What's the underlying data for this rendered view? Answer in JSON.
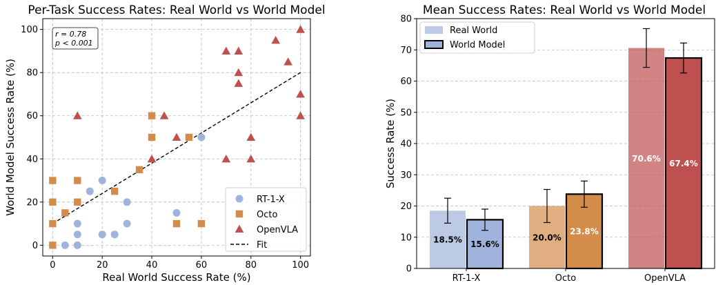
{
  "chart_data": [
    {
      "type": "scatter",
      "title": "Per-Task Success Rates: Real World vs World Model",
      "xlabel": "Real World Success Rate (%)",
      "ylabel": "World Model Success Rate (%)",
      "xlim": [
        -4,
        104
      ],
      "ylim": [
        -5,
        105
      ],
      "xticks": [
        0,
        20,
        40,
        60,
        80,
        100
      ],
      "yticks": [
        0,
        20,
        40,
        60,
        80,
        100
      ],
      "grid": true,
      "legend_position": "bottom-right",
      "stats_lines": [
        "r = 0.78",
        "p < 0.001"
      ],
      "series": [
        {
          "name": "RT-1-X",
          "marker": "circle",
          "color": "#9fb3dc",
          "points": [
            [
              5,
              0
            ],
            [
              10,
              0
            ],
            [
              10,
              5
            ],
            [
              10,
              10
            ],
            [
              15,
              25
            ],
            [
              20,
              30
            ],
            [
              20,
              5
            ],
            [
              25,
              5
            ],
            [
              30,
              20
            ],
            [
              30,
              10
            ],
            [
              50,
              15
            ],
            [
              60,
              50
            ]
          ]
        },
        {
          "name": "Octo",
          "marker": "square",
          "color": "#d38c4a",
          "points": [
            [
              0,
              30
            ],
            [
              0,
              20
            ],
            [
              0,
              10
            ],
            [
              0,
              0
            ],
            [
              5,
              15
            ],
            [
              10,
              30
            ],
            [
              10,
              20
            ],
            [
              25,
              25
            ],
            [
              35,
              35
            ],
            [
              40,
              60
            ],
            [
              40,
              50
            ],
            [
              50,
              10
            ],
            [
              55,
              50
            ],
            [
              60,
              10
            ]
          ]
        },
        {
          "name": "OpenVLA",
          "marker": "triangle",
          "color": "#bf5050",
          "points": [
            [
              10,
              60
            ],
            [
              40,
              40
            ],
            [
              45,
              60
            ],
            [
              50,
              50
            ],
            [
              70,
              90
            ],
            [
              70,
              40
            ],
            [
              75,
              90
            ],
            [
              75,
              80
            ],
            [
              75,
              75
            ],
            [
              80,
              50
            ],
            [
              80,
              40
            ],
            [
              90,
              95
            ],
            [
              95,
              85
            ],
            [
              100,
              100
            ],
            [
              100,
              70
            ],
            [
              100,
              60
            ]
          ]
        }
      ],
      "fit": {
        "name": "Fit",
        "line": [
          [
            0,
            10
          ],
          [
            100,
            80
          ]
        ]
      }
    },
    {
      "type": "bar",
      "title": "Mean Success Rates: Real World vs World Model",
      "ylabel": "Success Rate (%)",
      "ylim": [
        0,
        80
      ],
      "yticks": [
        0,
        10,
        20,
        30,
        40,
        50,
        60,
        70,
        80
      ],
      "grid": true,
      "legend_position": "top-left",
      "categories": [
        "RT-1-X",
        "Octo",
        "OpenVLA"
      ],
      "category_colors": [
        "#9fb3dc",
        "#d38c4a",
        "#bf5050"
      ],
      "series": [
        {
          "name": "Real World",
          "values": [
            18.5,
            20.0,
            70.6
          ],
          "errors": [
            4.0,
            5.3,
            6.2
          ],
          "labels": [
            "18.5%",
            "20.0%",
            "70.6%"
          ]
        },
        {
          "name": "World Model",
          "values": [
            15.6,
            23.8,
            67.4
          ],
          "errors": [
            3.4,
            4.2,
            4.8
          ],
          "labels": [
            "15.6%",
            "23.8%",
            "67.4%"
          ]
        }
      ]
    }
  ]
}
